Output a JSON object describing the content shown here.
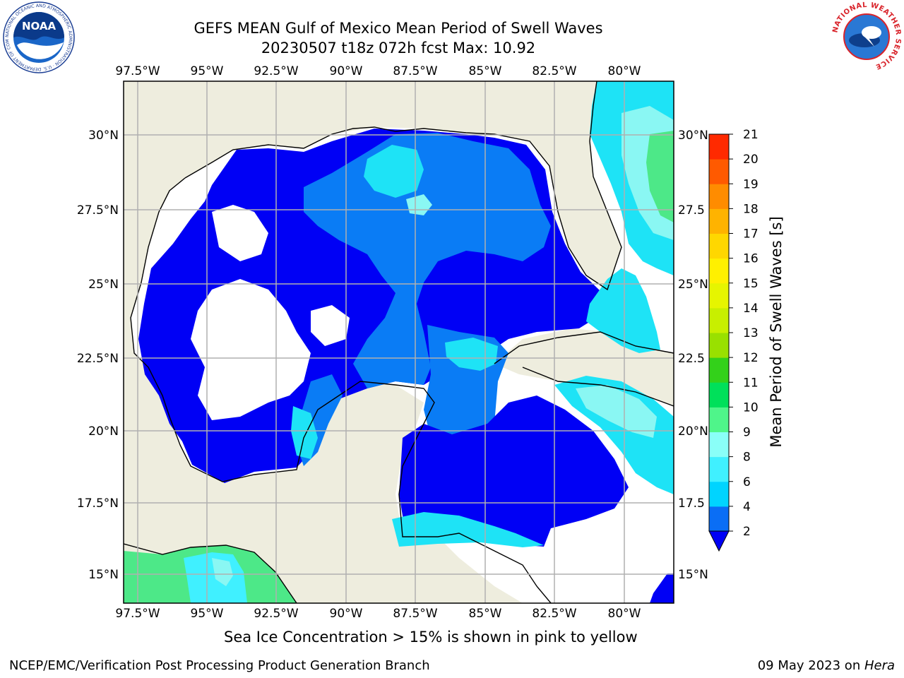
{
  "header": {
    "title_line1": "GEFS MEAN Gulf of Mexico Mean Period of Swell Waves",
    "title_line2": "20230507 t18z 072h fcst   Max: 10.92"
  },
  "logos": {
    "noaa_text": "NOAA",
    "noaa_ring_text": "NATIONAL OCEANIC AND ATMOSPHERIC ADMINISTRATION · U.S. DEPARTMENT OF COMMERCE",
    "nws_ring_text": "NATIONAL WEATHER SERVICE"
  },
  "map": {
    "lon_labels": [
      "97.5°W",
      "95°W",
      "92.5°W",
      "90°W",
      "87.5°W",
      "85°W",
      "82.5°W",
      "80°W"
    ],
    "lat_labels_left": [
      "30°N",
      "27.5°N",
      "25°N",
      "22.5°N",
      "20°N",
      "17.5°N",
      "15°N"
    ],
    "lat_labels_right": [
      "30°N",
      "27.5",
      "25°N",
      "22.5",
      "20°N",
      "17.5",
      "15°N"
    ],
    "colors": {
      "land": "#eeedde",
      "deep_blue": "#0000f5",
      "mid_blue": "#0a7cf5",
      "light_blue": "#2fa8f8",
      "cyan": "#00f0f8",
      "pale_cyan": "#8af7f3",
      "green": "#4de888"
    }
  },
  "colorbar": {
    "label": "Mean Period of Swell Waves [s]",
    "ticks": [
      "2",
      "4",
      "6",
      "8",
      "9",
      "10",
      "11",
      "12",
      "13",
      "14",
      "15",
      "16",
      "17",
      "18",
      "19",
      "20",
      "21"
    ],
    "colors": [
      "#0a6ef5",
      "#00d4ff",
      "#40f0ff",
      "#8afff8",
      "#4ff58a",
      "#00e05a",
      "#33d11a",
      "#99e000",
      "#c8ef00",
      "#e6f500",
      "#fff000",
      "#ffd700",
      "#ffb300",
      "#ff8c00",
      "#ff5a00",
      "#ff2a00"
    ],
    "extend_color": "#0000f5"
  },
  "note": "Sea Ice Concentration > 15% is shown in pink to yellow",
  "footer": {
    "left": "NCEP/EMC/Verification Post Processing Product Generation Branch",
    "date": "09 May 2023 on ",
    "host": "Hera"
  }
}
